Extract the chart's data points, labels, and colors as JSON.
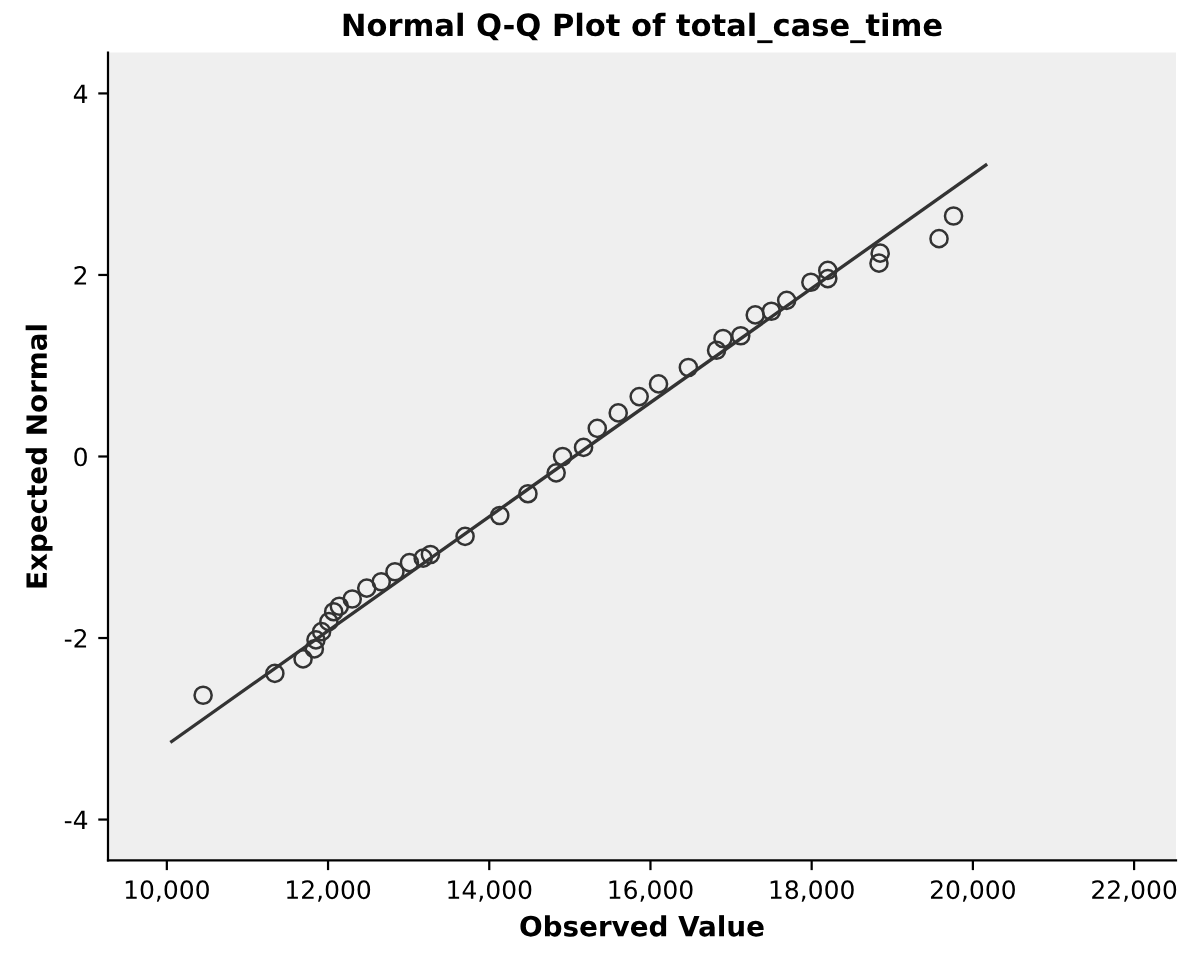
{
  "chart_data": {
    "type": "scatter",
    "title": "Normal Q-Q Plot of total_case_time",
    "xlabel": "Observed Value",
    "ylabel": "Expected Normal",
    "xlim": [
      9270,
      22520
    ],
    "ylim": [
      -4.45,
      4.45
    ],
    "xticks": [
      {
        "value": 10000,
        "label": "10,000"
      },
      {
        "value": 12000,
        "label": "12,000"
      },
      {
        "value": 14000,
        "label": "14,000"
      },
      {
        "value": 16000,
        "label": "16,000"
      },
      {
        "value": 18000,
        "label": "18,000"
      },
      {
        "value": 20000,
        "label": "20,000"
      },
      {
        "value": 22000,
        "label": "22,000"
      }
    ],
    "yticks": [
      -4,
      -2,
      0,
      2,
      4
    ],
    "grid": false,
    "legend": false,
    "marker": "circle",
    "series": [
      {
        "color": "#333333",
        "x": [
          10450,
          11340,
          11690,
          11830,
          11850,
          11920,
          12010,
          12070,
          12140,
          12300,
          12480,
          12660,
          12830,
          13010,
          13180,
          13270,
          13700,
          14130,
          14480,
          14830,
          14910,
          15170,
          15340,
          15600,
          15860,
          16100,
          16470,
          16820,
          16900,
          17120,
          17300,
          17500,
          17690,
          17990,
          18200,
          18200,
          18835,
          18850,
          19580,
          19760
        ],
        "values": [
          -2.63,
          -2.39,
          -2.23,
          -2.12,
          -2.02,
          -1.93,
          -1.82,
          -1.71,
          -1.65,
          -1.57,
          -1.45,
          -1.38,
          -1.27,
          -1.17,
          -1.12,
          -1.08,
          -0.88,
          -0.65,
          -0.41,
          -0.18,
          0.0,
          0.1,
          0.31,
          0.48,
          0.66,
          0.8,
          0.98,
          1.17,
          1.3,
          1.33,
          1.56,
          1.6,
          1.72,
          1.92,
          1.96,
          2.05,
          2.13,
          2.24,
          2.4,
          2.65
        ]
      },
      {
        "type": "line",
        "color": "#333333",
        "x": [
          10060,
          20160
        ],
        "values": [
          -3.14,
          3.21
        ],
        "marker": "none",
        "line_style": "solid"
      }
    ]
  }
}
